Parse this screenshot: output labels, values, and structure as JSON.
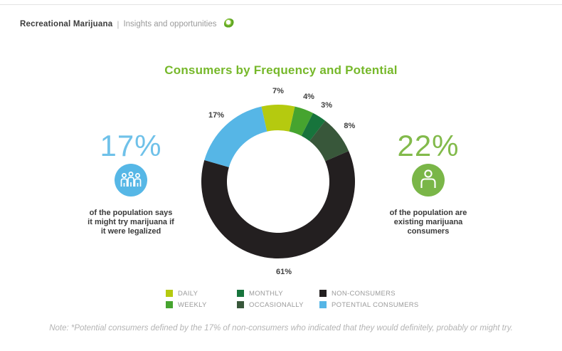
{
  "header": {
    "brand": "Recreational Marijuana",
    "separator": "|",
    "subtitle": "Insights and opportunities",
    "logo_icon": "green-ring-logo"
  },
  "title": "Consumers by Frequency and Potential",
  "title_color": "#76b82a",
  "left_stat": {
    "value": "17%",
    "value_color": "#6fc1e9",
    "icon": "people-group-icon",
    "icon_circle_color": "#56b7e6",
    "description_lines": [
      "of the population says",
      "it might try marijuana if",
      "it were legalized"
    ]
  },
  "right_stat": {
    "value": "22%",
    "value_color": "#82ba4b",
    "icon": "person-icon",
    "icon_circle_color": "#7ab648",
    "description_lines": [
      "of the population are",
      "existing marijuana",
      "consumers"
    ]
  },
  "chart_data": {
    "type": "pie",
    "subtype": "donut",
    "title": "Consumers by Frequency and Potential",
    "start_angle_deg": -12.6,
    "direction": "clockwise",
    "outer_radius_px": 108,
    "inner_radius_px": 72,
    "label_radius_px": 127,
    "data_label_format": "{value}%",
    "legend_position": "bottom",
    "segments": [
      {
        "label": "DAILY",
        "value": 7,
        "color": "#b5ca0f"
      },
      {
        "label": "WEEKLY",
        "value": 4,
        "color": "#46a42f"
      },
      {
        "label": "MONTHLY",
        "value": 3,
        "color": "#17743c"
      },
      {
        "label": "OCCASIONALLY",
        "value": 8,
        "color": "#38573a"
      },
      {
        "label": "NON-CONSUMERS",
        "value": 61,
        "color": "#231f20"
      },
      {
        "label": "POTENTIAL CONSUMERS",
        "value": 17,
        "color": "#56b6e6"
      }
    ]
  },
  "note": "Note: *Potential consumers defined by the 17% of non-consumers who indicated that they would definitely, probably or might try."
}
